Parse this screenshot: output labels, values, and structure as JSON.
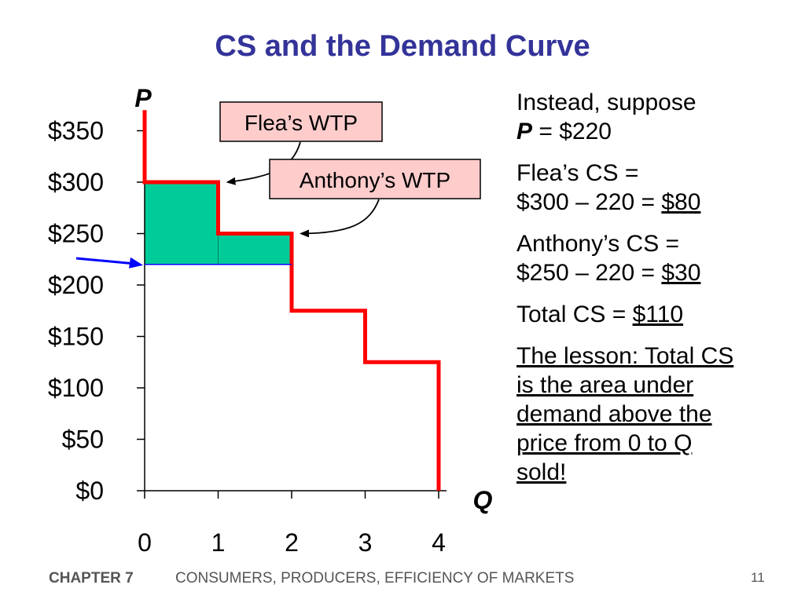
{
  "slide": {
    "title": "CS and the Demand Curve",
    "footer_chapter": "CHAPTER 7",
    "footer_title": "CONSUMERS, PRODUCERS, EFFICIENCY OF MARKETS",
    "page_number": "11"
  },
  "text_panel": {
    "line1": "Instead, suppose",
    "price_var": "P",
    "price_eq": " = $220",
    "flea_cs_label": "Flea’s CS =",
    "flea_cs_calc": "$300 – 220 = ",
    "flea_cs_value": "$80",
    "anthony_cs_label": "Anthony’s CS =",
    "anthony_cs_calc": "$250 – 220 = ",
    "anthony_cs_value": "$30",
    "total_cs_label": "Total CS = ",
    "total_cs_value": "$110",
    "lesson": "The lesson: Total CS is the area under demand above the price from 0 to Q sold!"
  },
  "colors": {
    "title": "#333399",
    "demand": "#ff0000",
    "cs_fill": "#00cc99",
    "price_line": "#0000ff",
    "callout_fill": "#ffcccc"
  },
  "chart_data": {
    "type": "line",
    "step": true,
    "xlabel": "Q",
    "ylabel": "P",
    "xlim": [
      0,
      4
    ],
    "ylim": [
      0,
      350
    ],
    "x_ticks": [
      0,
      1,
      2,
      3,
      4
    ],
    "x_tick_labels": [
      "0",
      "1",
      "2",
      "3",
      "4"
    ],
    "y_ticks": [
      0,
      50,
      100,
      150,
      200,
      250,
      300,
      350
    ],
    "y_tick_labels": [
      "$0",
      "$50",
      "$100",
      "$150",
      "$200",
      "$250",
      "$300",
      "$350"
    ],
    "demand_steps": [
      {
        "q_from": 0,
        "q_to": 1,
        "p": 300
      },
      {
        "q_from": 1,
        "q_to": 2,
        "p": 250
      },
      {
        "q_from": 2,
        "q_to": 3,
        "p": 175
      },
      {
        "q_from": 3,
        "q_to": 4,
        "p": 125
      }
    ],
    "demand_top_p": 370,
    "price": 220,
    "cs_areas": [
      {
        "q_from": 0,
        "q_to": 1,
        "p_top": 300,
        "p_bottom": 220
      },
      {
        "q_from": 1,
        "q_to": 2,
        "p_top": 250,
        "p_bottom": 220
      }
    ],
    "annotations": [
      {
        "text": "Flea’s WTP",
        "points_to_q": 1,
        "points_to_p": 300
      },
      {
        "text": "Anthony’s WTP",
        "points_to_q": 2,
        "points_to_p": 250
      }
    ]
  }
}
